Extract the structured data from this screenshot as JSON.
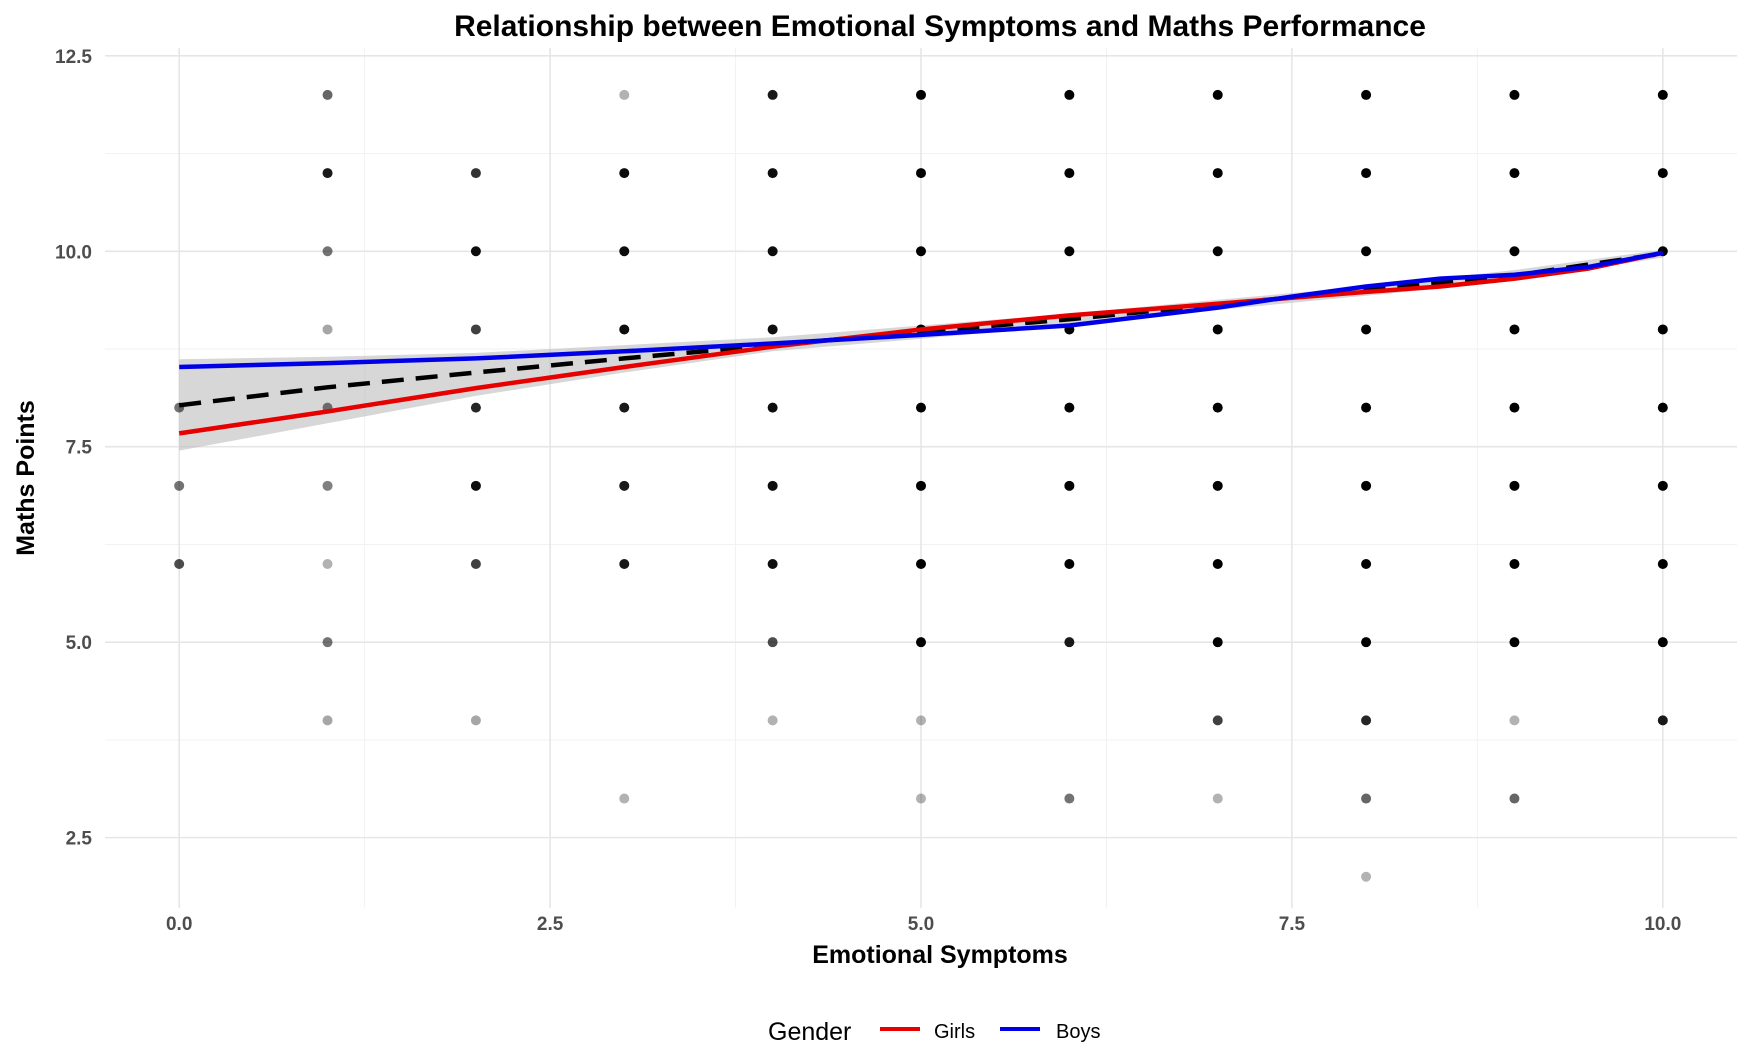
{
  "chart_data": {
    "type": "scatter",
    "title": "Relationship between Emotional Symptoms and Maths Performance",
    "xlabel": "Emotional Symptoms",
    "ylabel": "Maths Points",
    "xlim": [
      -0.5,
      10.5
    ],
    "ylim": [
      1.6,
      12.6
    ],
    "x_ticks": [
      0.0,
      2.5,
      5.0,
      7.5,
      10.0
    ],
    "x_tick_labels": [
      "0.0",
      "2.5",
      "5.0",
      "7.5",
      "10.0"
    ],
    "y_ticks": [
      2.5,
      5.0,
      7.5,
      10.0,
      12.5
    ],
    "y_tick_labels": [
      "2.5",
      "5.0",
      "7.5",
      "10.0",
      "12.5"
    ],
    "grid": true,
    "legend": {
      "title": "Gender",
      "position": "bottom",
      "entries": [
        {
          "label": "Girls",
          "color": "#e60000"
        },
        {
          "label": "Boys",
          "color": "#0000e6"
        }
      ]
    },
    "points": [
      {
        "x": 0,
        "y": 8,
        "a": 0.55
      },
      {
        "x": 0,
        "y": 7,
        "a": 0.55
      },
      {
        "x": 0,
        "y": 6,
        "a": 0.7
      },
      {
        "x": 1,
        "y": 12,
        "a": 0.6
      },
      {
        "x": 1,
        "y": 11,
        "a": 0.9
      },
      {
        "x": 1,
        "y": 10,
        "a": 0.55
      },
      {
        "x": 1,
        "y": 9,
        "a": 0.35
      },
      {
        "x": 1,
        "y": 8,
        "a": 0.5
      },
      {
        "x": 1,
        "y": 7,
        "a": 0.5
      },
      {
        "x": 1,
        "y": 6,
        "a": 0.3
      },
      {
        "x": 1,
        "y": 5,
        "a": 0.55
      },
      {
        "x": 1,
        "y": 4,
        "a": 0.35
      },
      {
        "x": 2,
        "y": 11,
        "a": 0.8
      },
      {
        "x": 2,
        "y": 10,
        "a": 0.95
      },
      {
        "x": 2,
        "y": 9,
        "a": 0.75
      },
      {
        "x": 2,
        "y": 8,
        "a": 0.85
      },
      {
        "x": 2,
        "y": 7,
        "a": 0.95
      },
      {
        "x": 2,
        "y": 6,
        "a": 0.75
      },
      {
        "x": 2,
        "y": 4,
        "a": 0.35
      },
      {
        "x": 3,
        "y": 12,
        "a": 0.3
      },
      {
        "x": 3,
        "y": 11,
        "a": 0.95
      },
      {
        "x": 3,
        "y": 10,
        "a": 0.95
      },
      {
        "x": 3,
        "y": 9,
        "a": 0.95
      },
      {
        "x": 3,
        "y": 8,
        "a": 0.9
      },
      {
        "x": 3,
        "y": 7,
        "a": 0.9
      },
      {
        "x": 3,
        "y": 6,
        "a": 0.9
      },
      {
        "x": 3,
        "y": 3,
        "a": 0.3
      },
      {
        "x": 4,
        "y": 12,
        "a": 0.9
      },
      {
        "x": 4,
        "y": 11,
        "a": 0.95
      },
      {
        "x": 4,
        "y": 10,
        "a": 0.95
      },
      {
        "x": 4,
        "y": 9,
        "a": 0.95
      },
      {
        "x": 4,
        "y": 8,
        "a": 0.95
      },
      {
        "x": 4,
        "y": 7,
        "a": 0.95
      },
      {
        "x": 4,
        "y": 6,
        "a": 0.95
      },
      {
        "x": 4,
        "y": 5,
        "a": 0.7
      },
      {
        "x": 4,
        "y": 4,
        "a": 0.3
      },
      {
        "x": 5,
        "y": 12,
        "a": 1
      },
      {
        "x": 5,
        "y": 11,
        "a": 1
      },
      {
        "x": 5,
        "y": 10,
        "a": 1
      },
      {
        "x": 5,
        "y": 9,
        "a": 1
      },
      {
        "x": 5,
        "y": 8,
        "a": 1
      },
      {
        "x": 5,
        "y": 7,
        "a": 1
      },
      {
        "x": 5,
        "y": 6,
        "a": 1
      },
      {
        "x": 5,
        "y": 5,
        "a": 1
      },
      {
        "x": 5,
        "y": 4,
        "a": 0.3
      },
      {
        "x": 5,
        "y": 3,
        "a": 0.3
      },
      {
        "x": 6,
        "y": 12,
        "a": 1
      },
      {
        "x": 6,
        "y": 11,
        "a": 1
      },
      {
        "x": 6,
        "y": 10,
        "a": 1
      },
      {
        "x": 6,
        "y": 9,
        "a": 1
      },
      {
        "x": 6,
        "y": 8,
        "a": 1
      },
      {
        "x": 6,
        "y": 7,
        "a": 1
      },
      {
        "x": 6,
        "y": 6,
        "a": 1
      },
      {
        "x": 6,
        "y": 5,
        "a": 0.9
      },
      {
        "x": 6,
        "y": 3,
        "a": 0.55
      },
      {
        "x": 7,
        "y": 12,
        "a": 1
      },
      {
        "x": 7,
        "y": 11,
        "a": 1
      },
      {
        "x": 7,
        "y": 10,
        "a": 1
      },
      {
        "x": 7,
        "y": 9,
        "a": 1
      },
      {
        "x": 7,
        "y": 8,
        "a": 1
      },
      {
        "x": 7,
        "y": 7,
        "a": 1
      },
      {
        "x": 7,
        "y": 6,
        "a": 1
      },
      {
        "x": 7,
        "y": 5,
        "a": 1
      },
      {
        "x": 7,
        "y": 4,
        "a": 0.75
      },
      {
        "x": 7,
        "y": 3,
        "a": 0.3
      },
      {
        "x": 8,
        "y": 12,
        "a": 1
      },
      {
        "x": 8,
        "y": 11,
        "a": 1
      },
      {
        "x": 8,
        "y": 10,
        "a": 1
      },
      {
        "x": 8,
        "y": 9,
        "a": 1
      },
      {
        "x": 8,
        "y": 8,
        "a": 1
      },
      {
        "x": 8,
        "y": 7,
        "a": 1
      },
      {
        "x": 8,
        "y": 6,
        "a": 1
      },
      {
        "x": 8,
        "y": 5,
        "a": 1
      },
      {
        "x": 8,
        "y": 4,
        "a": 0.85
      },
      {
        "x": 8,
        "y": 3,
        "a": 0.6
      },
      {
        "x": 8,
        "y": 2,
        "a": 0.3
      },
      {
        "x": 9,
        "y": 12,
        "a": 1
      },
      {
        "x": 9,
        "y": 11,
        "a": 1
      },
      {
        "x": 9,
        "y": 10,
        "a": 1
      },
      {
        "x": 9,
        "y": 9,
        "a": 1
      },
      {
        "x": 9,
        "y": 8,
        "a": 1
      },
      {
        "x": 9,
        "y": 7,
        "a": 1
      },
      {
        "x": 9,
        "y": 6,
        "a": 1
      },
      {
        "x": 9,
        "y": 5,
        "a": 1
      },
      {
        "x": 9,
        "y": 4,
        "a": 0.3
      },
      {
        "x": 9,
        "y": 3,
        "a": 0.6
      },
      {
        "x": 10,
        "y": 12,
        "a": 1
      },
      {
        "x": 10,
        "y": 11,
        "a": 1
      },
      {
        "x": 10,
        "y": 10,
        "a": 1
      },
      {
        "x": 10,
        "y": 9,
        "a": 1
      },
      {
        "x": 10,
        "y": 8,
        "a": 1
      },
      {
        "x": 10,
        "y": 7,
        "a": 1
      },
      {
        "x": 10,
        "y": 6,
        "a": 1
      },
      {
        "x": 10,
        "y": 5,
        "a": 1
      },
      {
        "x": 10,
        "y": 4,
        "a": 0.9
      }
    ],
    "confidence_band": {
      "x": [
        0,
        1,
        2,
        3,
        4,
        5,
        6,
        7,
        8,
        9,
        10
      ],
      "lower": [
        7.45,
        7.8,
        8.15,
        8.45,
        8.72,
        8.88,
        9.05,
        9.25,
        9.43,
        9.62,
        9.92
      ],
      "upper": [
        8.62,
        8.65,
        8.7,
        8.8,
        8.9,
        9.05,
        9.2,
        9.38,
        9.55,
        9.76,
        10.02
      ]
    },
    "series": [
      {
        "name": "Girls",
        "color": "#e60000",
        "style": "solid",
        "x": [
          0,
          1,
          2,
          3,
          4,
          5,
          6,
          7,
          8,
          8.5,
          9,
          9.5,
          10
        ],
        "y": [
          7.67,
          7.95,
          8.25,
          8.52,
          8.78,
          9.0,
          9.18,
          9.33,
          9.48,
          9.55,
          9.65,
          9.78,
          9.98
        ]
      },
      {
        "name": "Boys",
        "color": "#0000e6",
        "style": "solid",
        "x": [
          0,
          1,
          2,
          3,
          4,
          5,
          6,
          7,
          7.5,
          8,
          8.5,
          9,
          9.5,
          10
        ],
        "y": [
          8.52,
          8.57,
          8.63,
          8.72,
          8.82,
          8.93,
          9.05,
          9.28,
          9.42,
          9.55,
          9.65,
          9.7,
          9.8,
          9.98
        ]
      },
      {
        "x": [
          0,
          1,
          2,
          3,
          4,
          5,
          6,
          7,
          8,
          9,
          10
        ],
        "y": [
          8.03,
          8.26,
          8.45,
          8.63,
          8.8,
          8.97,
          9.13,
          9.32,
          9.5,
          9.69,
          9.97
        ],
        "color": "#000000",
        "style": "dashed"
      }
    ]
  }
}
